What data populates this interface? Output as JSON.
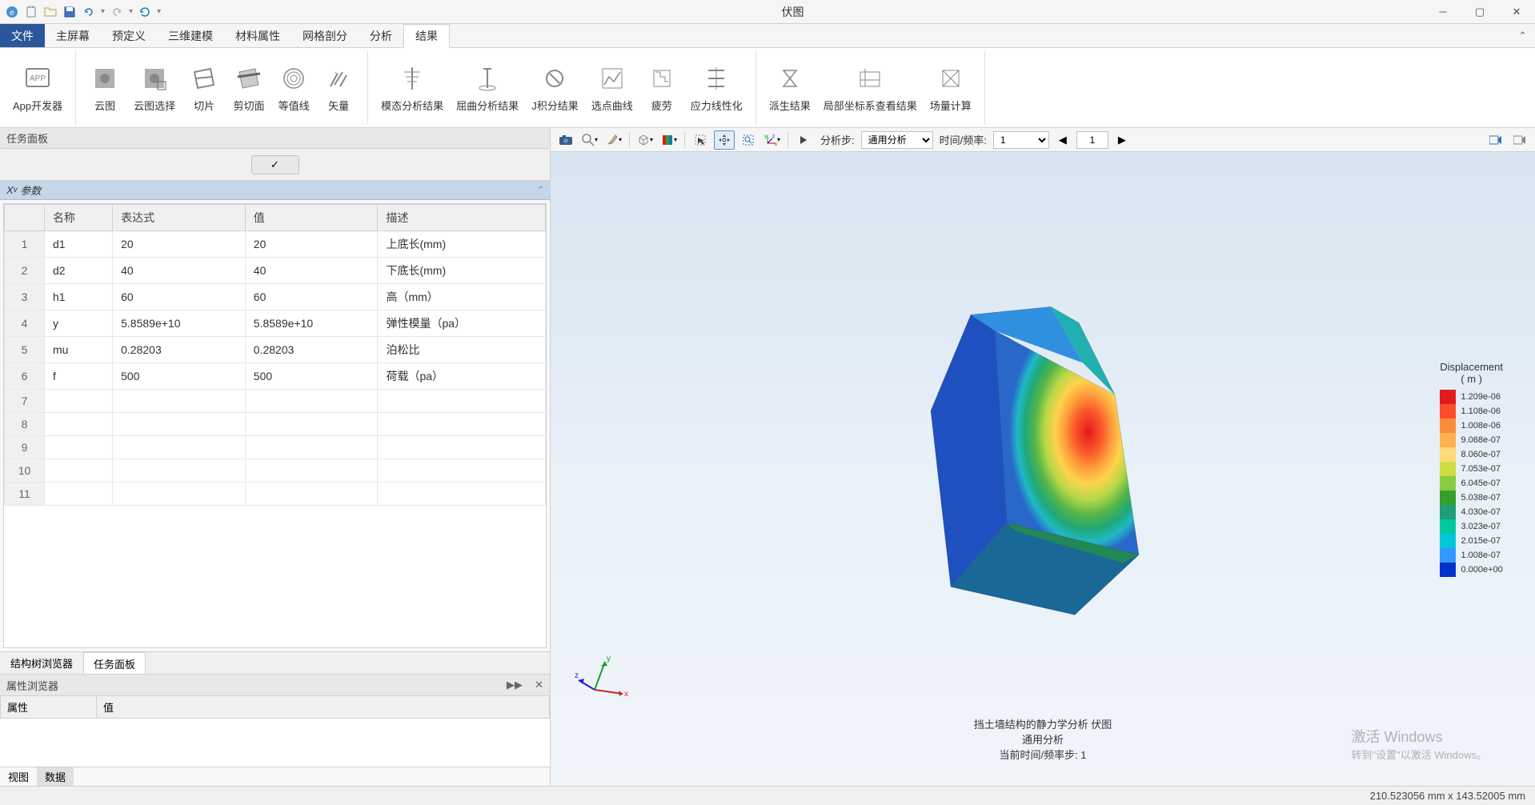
{
  "window": {
    "title": "伏图"
  },
  "menubar": {
    "file": "文件",
    "items": [
      "主屏幕",
      "预定义",
      "三维建模",
      "材料属性",
      "网格剖分",
      "分析",
      "结果"
    ],
    "active_index": 6
  },
  "ribbon": {
    "groups": [
      {
        "buttons": [
          {
            "label": "App开发器",
            "icon": "app"
          }
        ]
      },
      {
        "buttons": [
          {
            "label": "云图",
            "icon": "contour"
          },
          {
            "label": "云图选择",
            "icon": "contour-sel"
          },
          {
            "label": "切片",
            "icon": "slice"
          },
          {
            "label": "剪切面",
            "icon": "cut"
          },
          {
            "label": "等值线",
            "icon": "iso"
          },
          {
            "label": "矢量",
            "icon": "vector"
          }
        ]
      },
      {
        "buttons": [
          {
            "label": "模态分析结果",
            "icon": "modal"
          },
          {
            "label": "屈曲分析结果",
            "icon": "buckle"
          },
          {
            "label": "J积分结果",
            "icon": "jint"
          },
          {
            "label": "选点曲线",
            "icon": "curve"
          },
          {
            "label": "疲劳",
            "icon": "fatigue"
          },
          {
            "label": "应力线性化",
            "icon": "stress"
          }
        ]
      },
      {
        "buttons": [
          {
            "label": "派生结果",
            "icon": "derive"
          },
          {
            "label": "局部坐标系查看结果",
            "icon": "local"
          },
          {
            "label": "场量计算",
            "icon": "field"
          }
        ]
      }
    ]
  },
  "task_panel": {
    "title": "任务面板",
    "section": "Xv 参数",
    "columns": [
      "名称",
      "表达式",
      "值",
      "描述"
    ],
    "rows": [
      {
        "n": "1",
        "name": "d1",
        "expr": "20",
        "val": "20",
        "desc": "上底长(mm)"
      },
      {
        "n": "2",
        "name": "d2",
        "expr": "40",
        "val": "40",
        "desc": "下底长(mm)"
      },
      {
        "n": "3",
        "name": "h1",
        "expr": "60",
        "val": "60",
        "desc": "高（mm）"
      },
      {
        "n": "4",
        "name": "y",
        "expr": "5.8589e+10",
        "val": "5.8589e+10",
        "desc": "弹性模量（pa）"
      },
      {
        "n": "5",
        "name": "mu",
        "expr": "0.28203",
        "val": "0.28203",
        "desc": "泊松比"
      },
      {
        "n": "6",
        "name": "f",
        "expr": "500",
        "val": "500",
        "desc": "荷载（pa）"
      }
    ],
    "empty_rows": [
      "7",
      "8",
      "9",
      "10",
      "11"
    ]
  },
  "bottom_tabs": {
    "items": [
      "结构树浏览器",
      "任务面板"
    ],
    "active_index": 1
  },
  "property_panel": {
    "title": "属性浏览器",
    "columns": [
      "属性",
      "值"
    ],
    "tabs": [
      "视图",
      "数据"
    ],
    "active_tab": 1
  },
  "viewport_toolbar": {
    "step_label": "分析步:",
    "step_value": "通用分析",
    "time_label": "时间/频率:",
    "time_value": "1",
    "frame_value": "1"
  },
  "legend": {
    "title": "Displacement",
    "unit": "( m )",
    "values": [
      "1.209e-06",
      "1.108e-06",
      "1.008e-06",
      "9.068e-07",
      "8.060e-07",
      "7.053e-07",
      "6.045e-07",
      "5.038e-07",
      "4.030e-07",
      "3.023e-07",
      "2.015e-07",
      "1.008e-07",
      "0.000e+00"
    ],
    "colors": [
      "#e31a1c",
      "#fc4e2a",
      "#fd8d3c",
      "#feb24c",
      "#fed976",
      "#ccdd44",
      "#88cc44",
      "#33a02c",
      "#1f9e77",
      "#00c8a0",
      "#00c8d8",
      "#3399ff",
      "#0033cc"
    ]
  },
  "model_info": {
    "line1": "挡土墙结构的静力学分析  伏图",
    "line2": "通用分析",
    "line3": "当前时间/频率步: 1"
  },
  "watermark": {
    "line1": "激活 Windows",
    "line2": "转到\"设置\"以激活 Windows。"
  },
  "statusbar": {
    "text": "210.523056 mm x 143.52005 mm"
  }
}
